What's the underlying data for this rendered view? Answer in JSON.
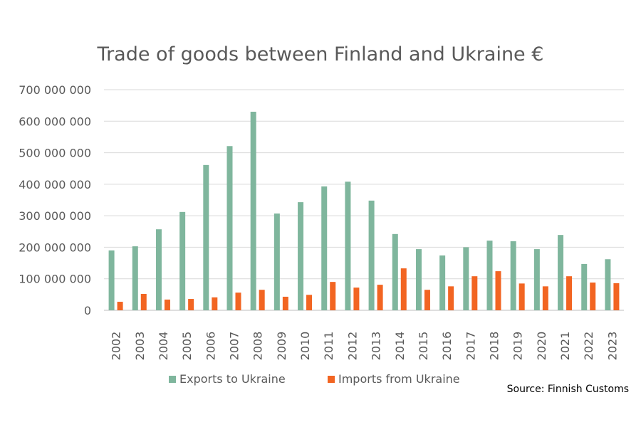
{
  "chart_data": {
    "type": "bar",
    "title": "Trade of goods between Finland and Ukraine €",
    "xlabel": "",
    "ylabel": "",
    "ylim": [
      0,
      700000000
    ],
    "yticks": [
      0,
      100000000,
      200000000,
      300000000,
      400000000,
      500000000,
      600000000,
      700000000
    ],
    "ytick_labels": [
      "0",
      "100 000 000",
      "200 000 000",
      "300 000 000",
      "400 000 000",
      "500 000 000",
      "600 000 000",
      "700 000 000"
    ],
    "grid": true,
    "legend_position": "bottom",
    "categories": [
      "2002",
      "2003",
      "2004",
      "2005",
      "2006",
      "2007",
      "2008",
      "2009",
      "2010",
      "2011",
      "2012",
      "2013",
      "2014",
      "2015",
      "2016",
      "2017",
      "2018",
      "2019",
      "2020",
      "2021",
      "2022",
      "2023"
    ],
    "series": [
      {
        "name": "Exports to Ukraine",
        "color": "#7fb69d",
        "values": [
          190000000,
          203000000,
          257000000,
          312000000,
          461000000,
          521000000,
          630000000,
          307000000,
          343000000,
          393000000,
          408000000,
          348000000,
          242000000,
          194000000,
          174000000,
          200000000,
          221000000,
          219000000,
          194000000,
          239000000,
          147000000,
          162000000
        ]
      },
      {
        "name": "Imports from Ukraine",
        "color": "#f26522",
        "values": [
          27000000,
          52000000,
          34000000,
          36000000,
          41000000,
          56000000,
          65000000,
          43000000,
          49000000,
          90000000,
          72000000,
          81000000,
          133000000,
          65000000,
          76000000,
          108000000,
          124000000,
          85000000,
          76000000,
          108000000,
          88000000,
          86000000
        ]
      }
    ],
    "annotations": [
      "Source: Finnish Customs"
    ]
  },
  "colors": {
    "grid": "#d9d9d9",
    "axis": "#bfbfbf",
    "text": "#595959"
  }
}
